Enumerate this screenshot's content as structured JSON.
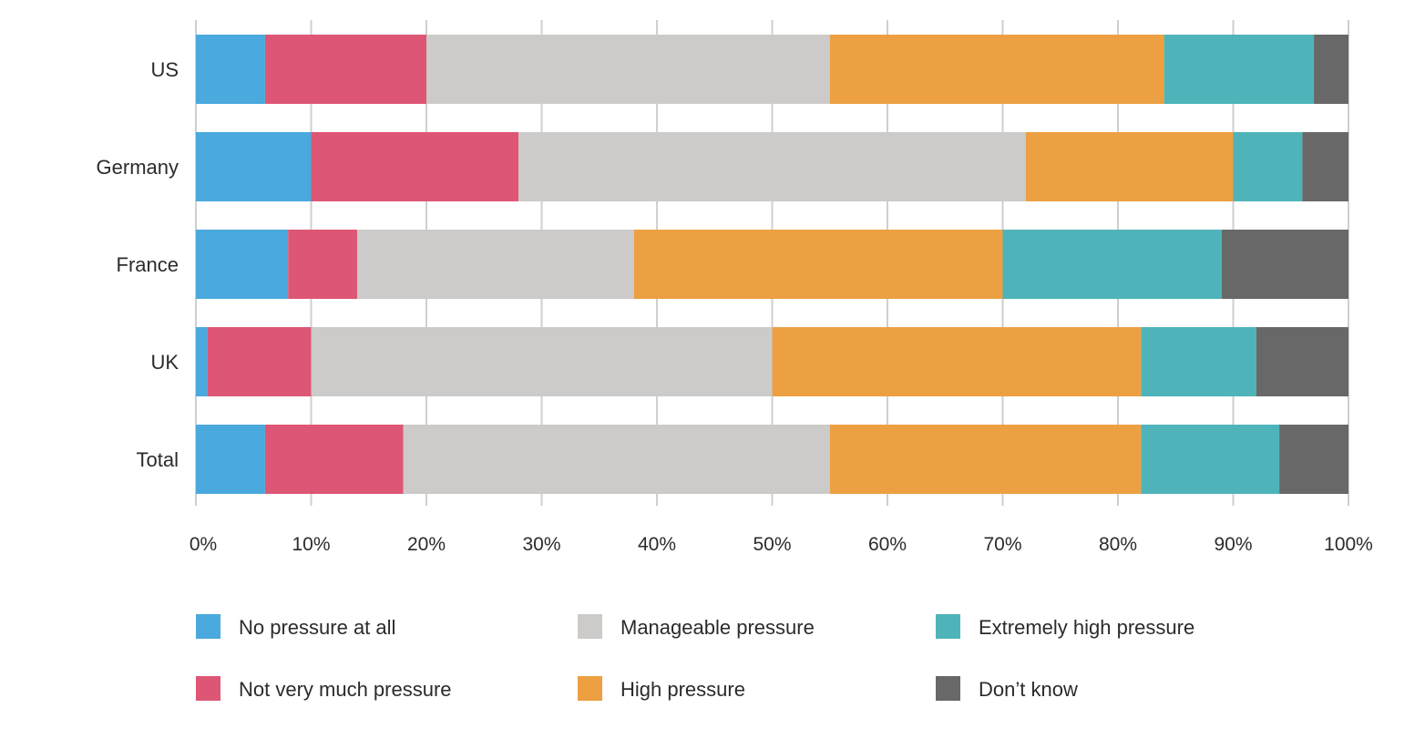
{
  "chart_data": {
    "type": "bar",
    "orientation": "horizontal",
    "stacked": true,
    "title": "",
    "xlabel": "",
    "ylabel": "",
    "xlim": [
      0,
      100
    ],
    "x_ticks": [
      0,
      10,
      20,
      30,
      40,
      50,
      60,
      70,
      80,
      90,
      100
    ],
    "x_tick_labels": [
      "0%",
      "10%",
      "20%",
      "30%",
      "40%",
      "50%",
      "60%",
      "70%",
      "80%",
      "90%",
      "100%"
    ],
    "grid": "vertical",
    "legend_position": "bottom",
    "categories": [
      "US",
      "Germany",
      "France",
      "UK",
      "Total"
    ],
    "series": [
      {
        "name": "No pressure at all",
        "color": "#4aa9dd",
        "values": [
          6,
          10,
          8,
          1,
          6
        ]
      },
      {
        "name": "Not very much pressure",
        "color": "#de5675",
        "values": [
          14,
          18,
          6,
          9,
          12
        ]
      },
      {
        "name": "Manageable pressure",
        "color": "#cccbc9",
        "values": [
          35,
          44,
          24,
          40,
          37
        ]
      },
      {
        "name": "High pressure",
        "color": "#eca042",
        "values": [
          29,
          18,
          32,
          32,
          27
        ]
      },
      {
        "name": "Extremely high pressure",
        "color": "#4eb4b9",
        "values": [
          13,
          6,
          19,
          10,
          12
        ]
      },
      {
        "name": "Don’t know",
        "color": "#676867",
        "values": [
          3,
          4,
          11,
          8,
          6
        ]
      }
    ]
  }
}
